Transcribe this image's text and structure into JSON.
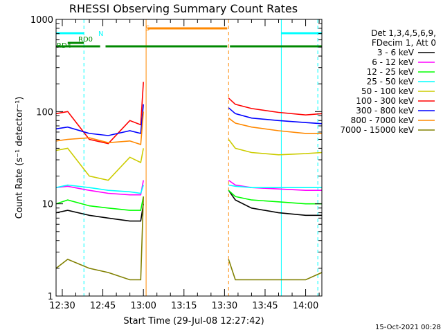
{
  "chart_data": {
    "type": "line",
    "title": "RHESSI Observing Summary Count Rates",
    "xlabel": "Start Time (29-Jul-08 12:27:42)",
    "ylabel": "Count Rate (s⁻¹ detector⁻¹)",
    "yscale": "log",
    "ylim": [
      1,
      1000
    ],
    "xlim": [
      "12:27:42",
      "14:06:00"
    ],
    "x_ticks": [
      "12:30",
      "12:45",
      "13:00",
      "13:15",
      "13:30",
      "13:45",
      "14:00"
    ],
    "y_ticks": [
      "1",
      "10",
      "100",
      "1000"
    ],
    "legend_header": [
      "Det 1,3,4,5,6,9,",
      "FDecim 1, Att 0"
    ],
    "legend_placement": "right",
    "footer": "15-Oct-2021 00:28",
    "data_gaps": [
      [
        "13:01:00",
        "13:31:30"
      ]
    ],
    "series": [
      {
        "name": "3 - 6 keV",
        "color": "#000000",
        "x": [
          "12:27:42",
          "12:32",
          "12:40",
          "12:47",
          "12:55",
          "12:59",
          "13:00",
          "13:31:30",
          "13:34",
          "13:40",
          "13:50",
          "14:00",
          "14:06"
        ],
        "y": [
          8,
          8.5,
          7.5,
          7,
          6.5,
          6.5,
          10,
          14,
          11,
          9,
          8,
          7.5,
          7.5
        ]
      },
      {
        "name": "6 - 12 keV",
        "color": "#ff00ff",
        "x": [
          "12:27:42",
          "12:32",
          "12:40",
          "12:47",
          "12:55",
          "12:59",
          "13:00",
          "13:31:30",
          "13:34",
          "13:40",
          "13:50",
          "14:00",
          "14:06"
        ],
        "y": [
          15,
          15.5,
          14,
          13,
          12.5,
          12.5,
          18,
          18,
          16,
          15,
          14.5,
          14,
          14
        ]
      },
      {
        "name": "12 - 25 keV",
        "color": "#00ff00",
        "x": [
          "12:27:42",
          "12:32",
          "12:40",
          "12:47",
          "12:55",
          "12:59",
          "13:00",
          "13:31:30",
          "13:34",
          "13:40",
          "13:50",
          "14:00",
          "14:06"
        ],
        "y": [
          10,
          11,
          9.5,
          9,
          8.5,
          8.5,
          12,
          14,
          12,
          11,
          10.5,
          10,
          10
        ]
      },
      {
        "name": "25 - 50 keV",
        "color": "#00ffff",
        "x": [
          "12:27:42",
          "12:32",
          "12:40",
          "12:47",
          "12:55",
          "12:59",
          "13:00",
          "13:31:30",
          "13:34",
          "13:40",
          "13:50",
          "14:00",
          "14:06"
        ],
        "y": [
          15,
          16,
          15,
          14,
          13.5,
          13,
          16,
          16,
          15.5,
          15,
          15,
          15,
          15
        ]
      },
      {
        "name": "50 - 100 keV",
        "color": "#cccc00",
        "x": [
          "12:27:42",
          "12:32",
          "12:40",
          "12:47",
          "12:55",
          "12:59",
          "13:00",
          "13:31:30",
          "13:34",
          "13:40",
          "13:50",
          "14:00",
          "14:06"
        ],
        "y": [
          38,
          40,
          20,
          18,
          32,
          28,
          40,
          50,
          40,
          36,
          34,
          35,
          36
        ]
      },
      {
        "name": "100 - 300 keV",
        "color": "#ff0000",
        "x": [
          "12:27:42",
          "12:32",
          "12:40",
          "12:47",
          "12:55",
          "12:59",
          "13:00",
          "13:31:30",
          "13:34",
          "13:40",
          "13:50",
          "14:00",
          "14:06"
        ],
        "y": [
          95,
          100,
          50,
          45,
          80,
          72,
          210,
          140,
          120,
          108,
          98,
          92,
          95
        ]
      },
      {
        "name": "300 - 800 keV",
        "color": "#0000ff",
        "x": [
          "12:27:42",
          "12:32",
          "12:40",
          "12:47",
          "12:55",
          "12:59",
          "13:00",
          "13:31:30",
          "13:34",
          "13:40",
          "13:50",
          "14:00",
          "14:06"
        ],
        "y": [
          65,
          68,
          58,
          55,
          62,
          58,
          120,
          110,
          95,
          85,
          80,
          76,
          74
        ]
      },
      {
        "name": "800 - 7000 keV",
        "color": "#ff8800",
        "x": [
          "12:27:42",
          "12:32",
          "12:40",
          "12:47",
          "12:55",
          "12:59",
          "13:00",
          "13:31:30",
          "13:34",
          "13:40",
          "13:50",
          "14:00",
          "14:06"
        ],
        "y": [
          48,
          50,
          52,
          46,
          48,
          44,
          100,
          85,
          75,
          68,
          62,
          58,
          58
        ]
      },
      {
        "name": "7000 - 15000 keV",
        "color": "#808000",
        "x": [
          "12:27:42",
          "12:32",
          "12:40",
          "12:47",
          "12:55",
          "12:59",
          "13:00",
          "13:31:30",
          "13:34",
          "13:40",
          "13:50",
          "14:00",
          "14:06"
        ],
        "y": [
          2,
          2.5,
          2,
          1.8,
          1.5,
          1.5,
          12,
          2.5,
          1.5,
          1.5,
          1.5,
          1.5,
          1.8
        ]
      }
    ],
    "status_bars": [
      {
        "label": "N",
        "color": "#00ffff",
        "segments": [
          [
            "12:27:42",
            "12:38:00"
          ],
          [
            "13:51:00",
            "14:06:00"
          ]
        ]
      },
      {
        "label": "RD0",
        "color": "#008800",
        "segments": [
          [
            "12:32:00",
            "12:38:00"
          ]
        ]
      },
      {
        "label": "RD4",
        "color": "#008800",
        "segments": [
          [
            "12:27:42",
            "12:44:00"
          ],
          [
            "12:46:00",
            "13:31:00"
          ],
          [
            "13:32:00",
            "14:06:00"
          ]
        ]
      },
      {
        "label": "S",
        "color": "#ff8800",
        "segments": [
          [
            "13:01:30",
            "13:31:00"
          ]
        ]
      }
    ],
    "vertical_markers": [
      {
        "time": "12:38:00",
        "color": "#00ffff",
        "style": "dashed"
      },
      {
        "time": "13:01:00",
        "color": "#ff8800",
        "style": "solid"
      },
      {
        "time": "13:31:30",
        "color": "#ff8800",
        "style": "dashed"
      },
      {
        "time": "13:51:00",
        "color": "#00ffff",
        "style": "solid"
      },
      {
        "time": "14:04:30",
        "color": "#00ffff",
        "style": "dashed"
      }
    ]
  }
}
